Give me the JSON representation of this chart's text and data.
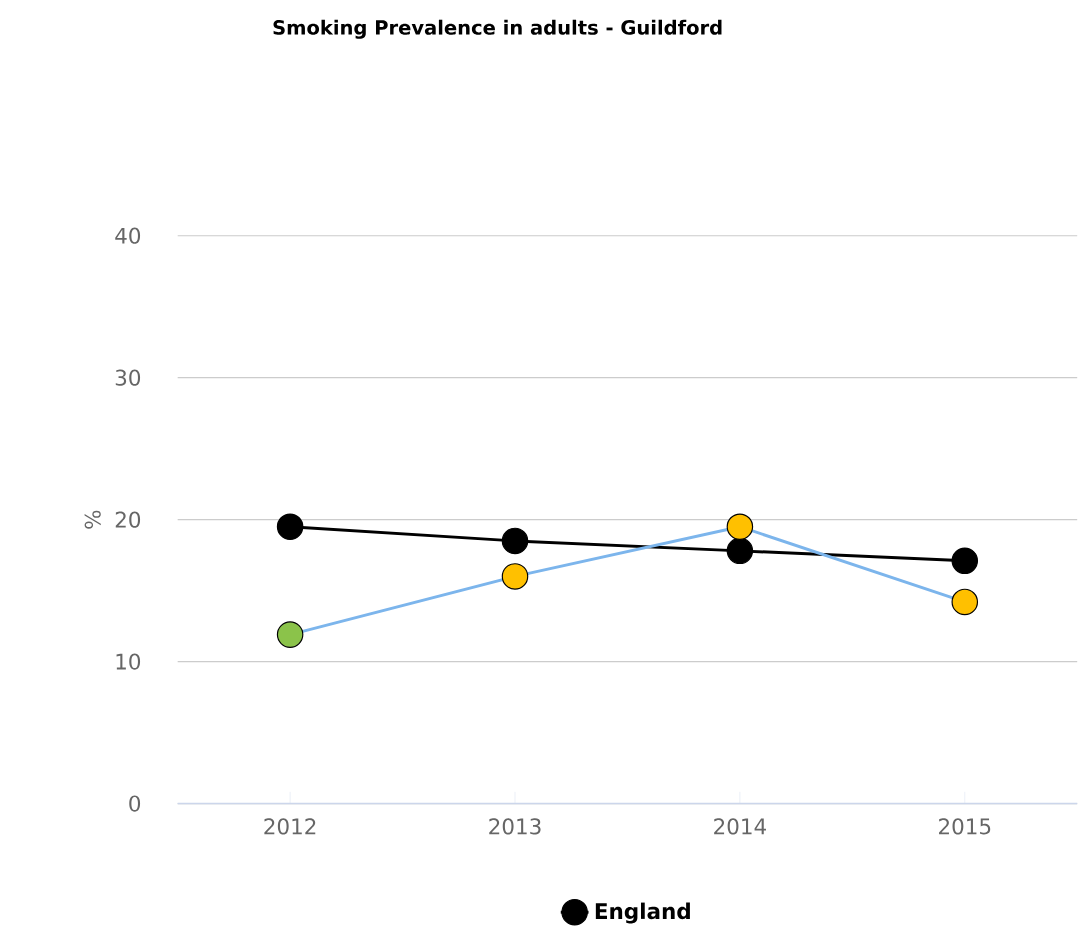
{
  "chart_data": {
    "type": "line",
    "title": "Smoking Prevalence in adults - Guildford",
    "ylabel": "%",
    "categories": [
      "2012",
      "2013",
      "2014",
      "2015"
    ],
    "series": [
      {
        "name": "England",
        "color": "#000000",
        "values": [
          19.5,
          18.5,
          17.8,
          17.1
        ]
      },
      {
        "color": "#7cb5ec",
        "colors": [
          "#8bc34a",
          "#ffc000",
          "#ffc000",
          "#ffc000"
        ],
        "values": [
          11.9,
          16.0,
          19.5,
          14.2
        ]
      }
    ],
    "ylim": [
      0,
      40
    ],
    "yticks": [
      0,
      10,
      20,
      30,
      40
    ],
    "grid": "y",
    "legend": "bottom",
    "marker": "circle",
    "line_style": "solid"
  }
}
